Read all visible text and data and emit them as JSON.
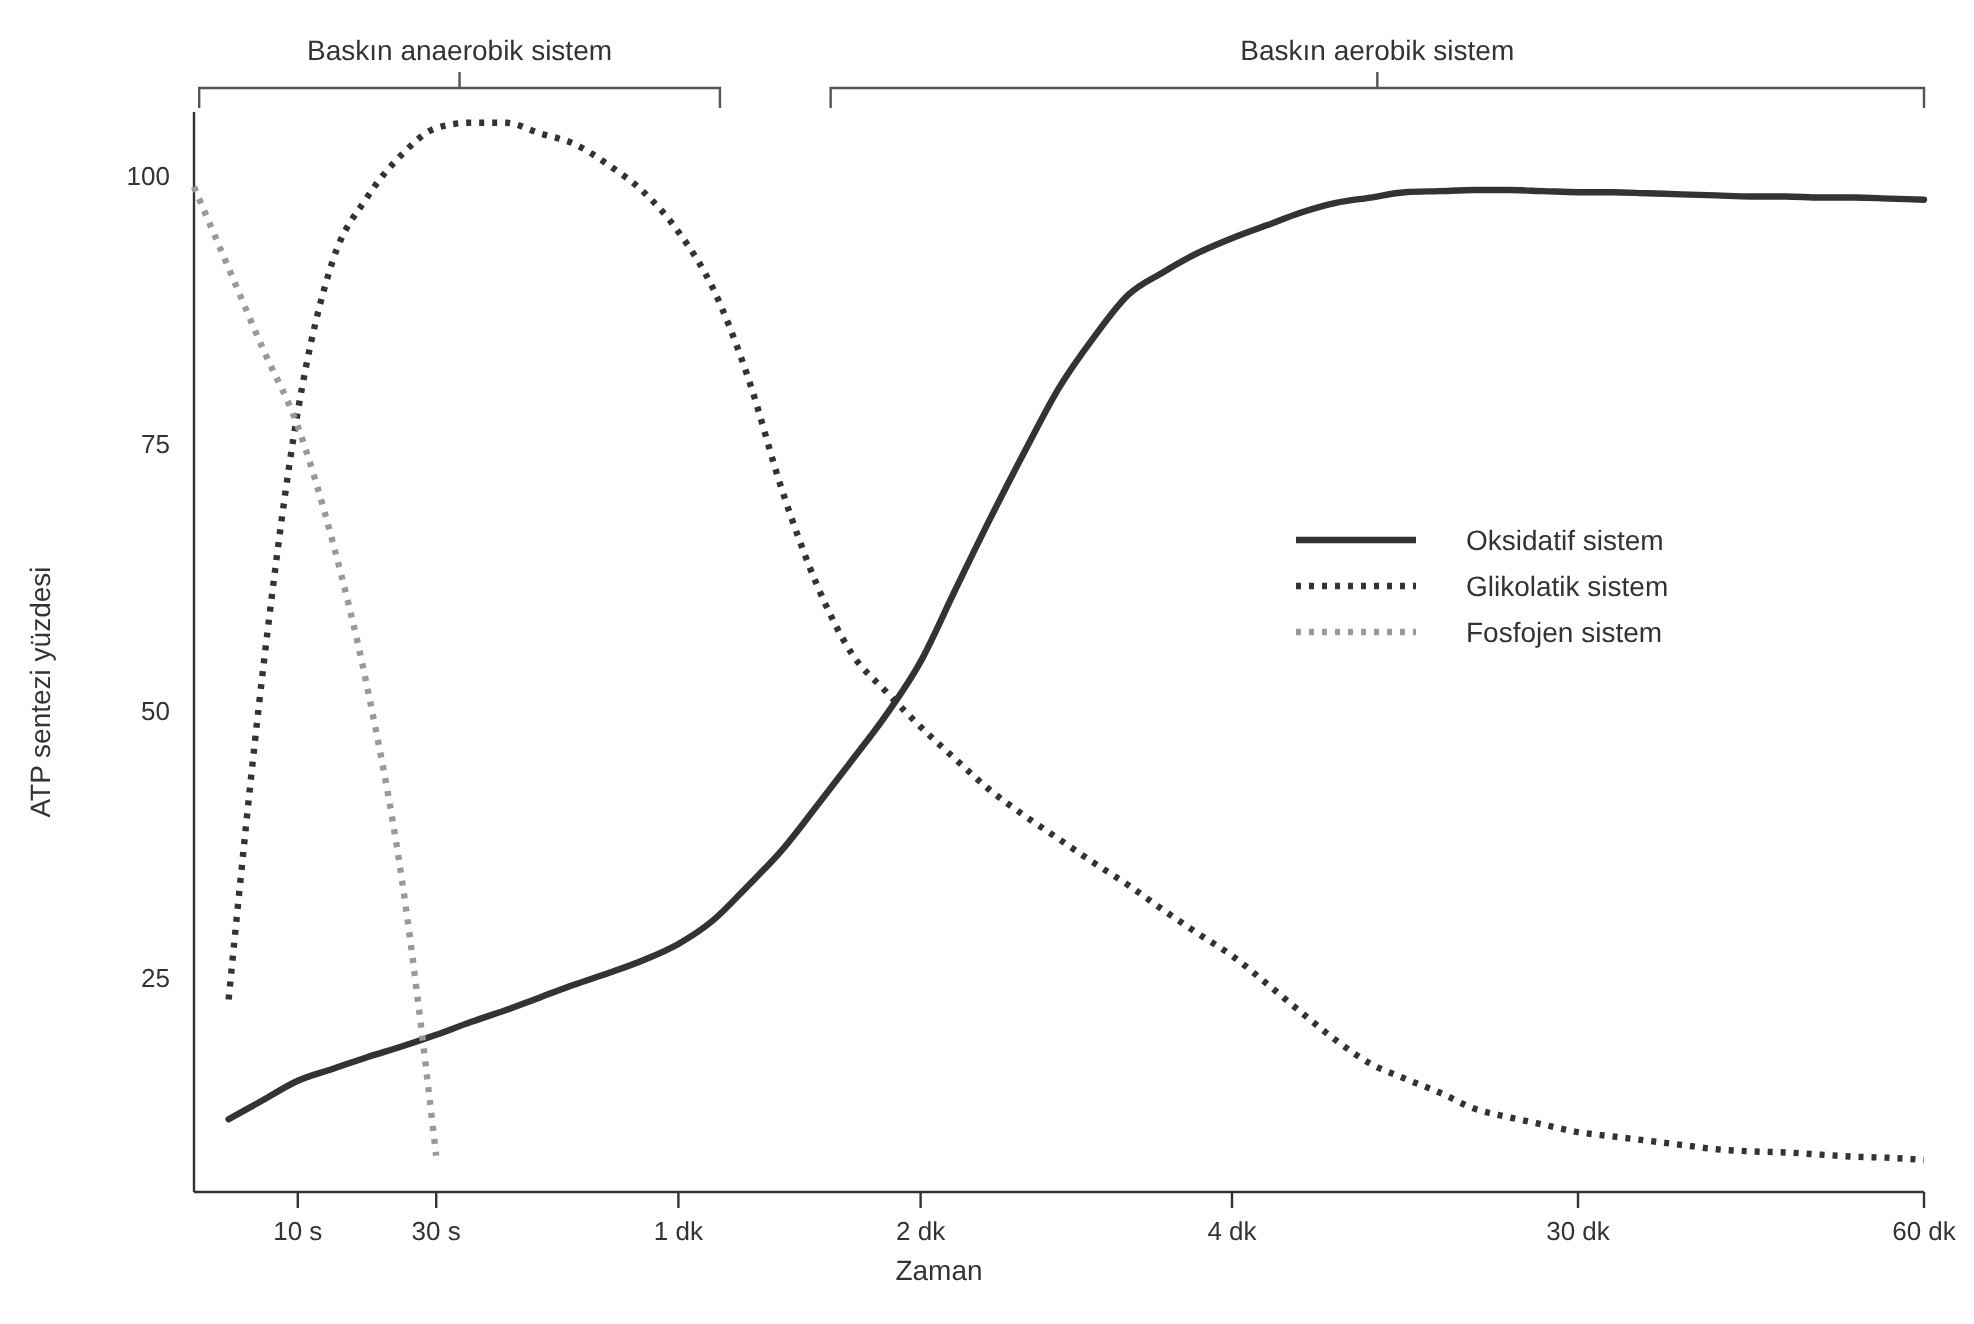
{
  "chart_data": {
    "type": "line",
    "xlabel": "Zaman",
    "ylabel": "ATP sentezi yüzdesi",
    "categories": [
      null,
      null,
      null,
      "10 s",
      null,
      null,
      null,
      "30 s",
      null,
      null,
      null,
      null,
      null,
      null,
      "1 dk",
      null,
      null,
      null,
      null,
      null,
      null,
      "2 dk",
      null,
      null,
      null,
      null,
      null,
      null,
      null,
      null,
      "4 dk",
      null,
      null,
      null,
      null,
      null,
      null,
      null,
      null,
      null,
      "30 dk",
      null,
      null,
      null,
      null,
      null,
      null,
      null,
      null,
      null,
      "60 dk"
    ],
    "ylim": [
      5,
      106
    ],
    "yticks": [
      25,
      50,
      75,
      100
    ],
    "annotations": [
      "Baskın anaerobik sistem",
      "Baskın aerobik sistem"
    ],
    "legend": "right",
    "grid": false,
    "series": [
      {
        "name": "Oksidatif sistem",
        "color": "#333333",
        "line_style": "solid",
        "values": [
          null,
          11.8,
          13.6,
          15.4,
          16.5,
          17.6,
          18.6,
          19.7,
          20.9,
          22.0,
          23.2,
          24.4,
          25.5,
          26.7,
          28.2,
          30.4,
          33.6,
          37.0,
          41.1,
          45.3,
          49.6,
          54.6,
          61.3,
          67.9,
          74.2,
          80.2,
          84.9,
          88.9,
          91.0,
          92.8,
          94.2,
          95.4,
          96.6,
          97.5,
          98.0,
          98.5,
          98.6,
          98.7,
          98.7,
          98.6,
          98.5,
          98.5,
          98.4,
          98.3,
          98.2,
          98.1,
          98.1,
          98.0,
          98.0,
          97.9,
          97.8
        ]
      },
      {
        "name": "Glikolatik sistem",
        "color": "#333333",
        "line_style": "dotted",
        "values": [
          null,
          23,
          54,
          78,
          92,
          98,
          102,
          104.5,
          105,
          105,
          104,
          103,
          101,
          98.5,
          94.8,
          89.5,
          81.3,
          70.6,
          61.8,
          55.4,
          51.8,
          48.5,
          45.5,
          42.6,
          40.2,
          38.0,
          35.8,
          33.7,
          31.4,
          29.2,
          27.1,
          24.5,
          21.8,
          19.2,
          17.0,
          15.6,
          14.3,
          12.8,
          12.0,
          11.3,
          10.6,
          10.2,
          9.8,
          9.4,
          9.0,
          8.8,
          8.7,
          8.5,
          8.3,
          8.2,
          8.0
        ]
      },
      {
        "name": "Fosfojen sistem",
        "color": "#999999",
        "line_style": "dotted",
        "values": [
          99,
          91.4,
          83.8,
          76.6,
          65.9,
          52.3,
          34.4,
          8.4,
          null,
          null,
          null,
          null,
          null,
          null,
          null,
          null,
          null,
          null,
          null,
          null,
          null,
          null,
          null,
          null,
          null,
          null,
          null,
          null,
          null,
          null,
          null,
          null,
          null,
          null,
          null,
          null,
          null,
          null,
          null,
          null,
          null,
          null,
          null,
          null,
          null,
          null,
          null,
          null,
          null,
          null,
          null
        ]
      }
    ]
  }
}
